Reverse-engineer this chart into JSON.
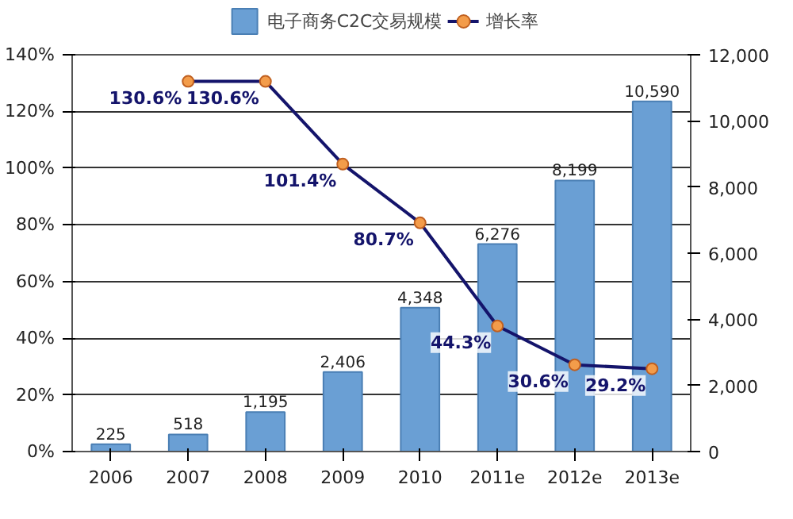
{
  "chart_data": {
    "type": "bar",
    "categories": [
      "2006",
      "2007",
      "2008",
      "2009",
      "2010",
      "2011e",
      "2012e",
      "2013e"
    ],
    "series": [
      {
        "name": "电子商务C2C交易规模",
        "axis": "y2",
        "color": "#6a9fd4",
        "values": [
          225,
          518,
          1195,
          2406,
          4348,
          6276,
          8199,
          10590
        ],
        "value_labels": [
          "225",
          "518",
          "1,195",
          "2,406",
          "4,348",
          "6,276",
          "8,199",
          "10,590"
        ]
      },
      {
        "name": "增长率",
        "type": "line",
        "axis": "y",
        "color": "#14146b",
        "marker": "circle",
        "values": [
          null,
          130.6,
          130.6,
          101.4,
          80.7,
          44.3,
          30.6,
          29.2
        ],
        "value_labels": [
          null,
          "130.6%",
          "130.6%",
          "101.4%",
          "80.7%",
          "44.3%",
          "30.6%",
          "29.2%"
        ]
      }
    ],
    "data_labels": true,
    "ylim": [
      0,
      140
    ],
    "yticks": [
      {
        "value": 0,
        "label": "0%"
      },
      {
        "value": 20,
        "label": "20%"
      },
      {
        "value": 40,
        "label": "40%"
      },
      {
        "value": 60,
        "label": "60%"
      },
      {
        "value": 80,
        "label": "80%"
      },
      {
        "value": 100,
        "label": "100%"
      },
      {
        "value": 120,
        "label": "120%"
      },
      {
        "value": 140,
        "label": "140%"
      }
    ],
    "y2lim": [
      0,
      12000
    ],
    "y2ticks": [
      0,
      {
        "value": 2000,
        "label": "2,000"
      },
      {
        "value": 4000,
        "label": "4,000"
      },
      {
        "value": 6000,
        "label": "6,000"
      },
      {
        "value": 8000,
        "label": "8,000"
      },
      {
        "value": 10000,
        "label": "10,000"
      },
      {
        "value": 12000,
        "label": "12,000"
      }
    ],
    "grid": "y",
    "legend": "top"
  }
}
